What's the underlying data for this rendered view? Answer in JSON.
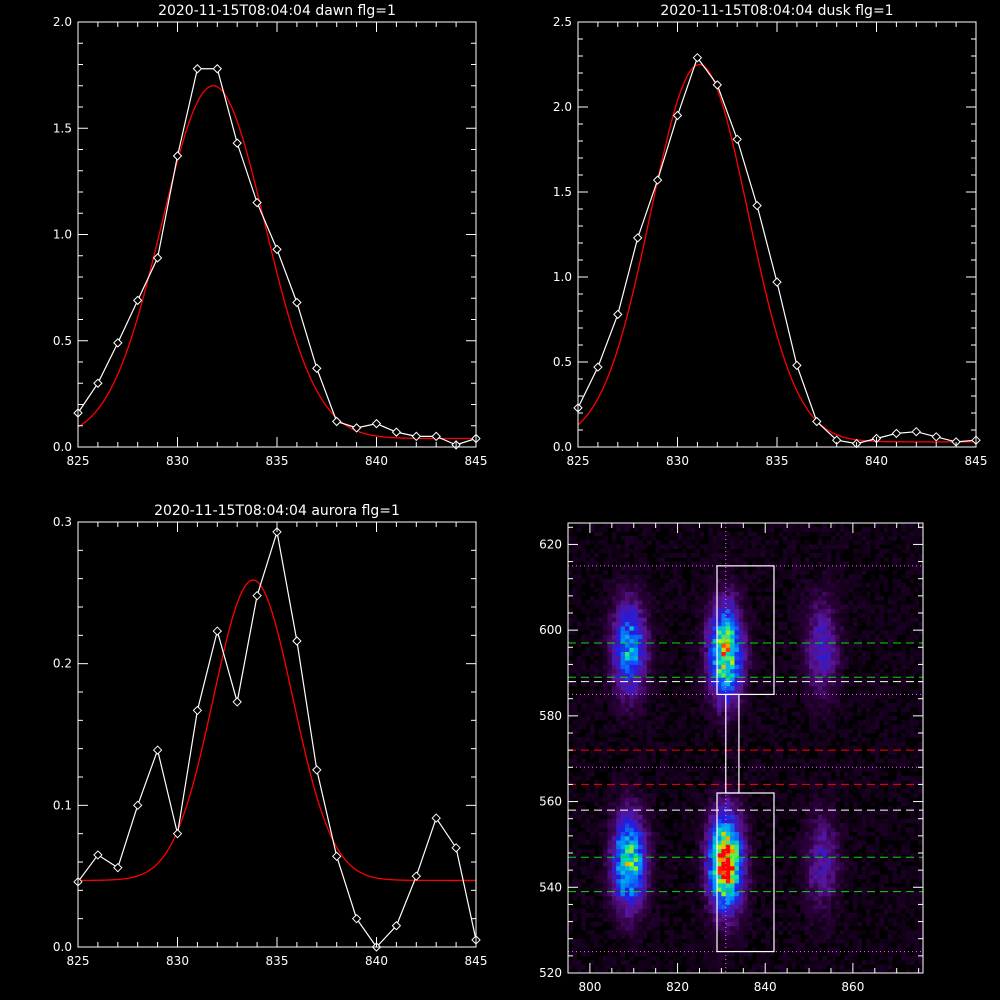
{
  "colors": {
    "background": "#000000",
    "data": "#ffffff",
    "fit": "#ff0000",
    "green": "#00e000",
    "red": "#ff0000",
    "magenta": "#ff66ff"
  },
  "chart_data": [
    {
      "type": "line",
      "title": "2020-11-15T08:04:04 dawn flg=1",
      "xlim": [
        825,
        845
      ],
      "ylim": [
        0,
        2.0
      ],
      "xticks": [
        "825",
        "830",
        "835",
        "840",
        "845"
      ],
      "yticks": [
        "0.0",
        "0.5",
        "1.0",
        "1.5",
        "2.0"
      ],
      "x": [
        825,
        826,
        827,
        828,
        829,
        830,
        831,
        832,
        833,
        834,
        835,
        836,
        837,
        838,
        839,
        840,
        841,
        842,
        843,
        844,
        845
      ],
      "series": [
        {
          "values": [
            0.16,
            0.3,
            0.49,
            0.69,
            0.89,
            1.37,
            1.78,
            1.78,
            1.43,
            1.15,
            0.93,
            0.68,
            0.37,
            0.12,
            0.09,
            0.11,
            0.07,
            0.05,
            0.05,
            0.01,
            0.04
          ]
        },
        {
          "fit": {
            "amp": 1.66,
            "center": 831.8,
            "sigma": 2.6,
            "base": 0.04
          }
        }
      ]
    },
    {
      "type": "line",
      "title": "2020-11-15T08:04:04 dusk flg=1",
      "xlim": [
        825,
        845
      ],
      "ylim": [
        0,
        2.5
      ],
      "xticks": [
        "825",
        "830",
        "835",
        "840",
        "845"
      ],
      "yticks": [
        "0.0",
        "0.5",
        "1.0",
        "1.5",
        "2.0",
        "2.5"
      ],
      "x": [
        825,
        826,
        827,
        828,
        829,
        830,
        831,
        832,
        833,
        834,
        835,
        836,
        837,
        838,
        839,
        840,
        841,
        842,
        843,
        844,
        845
      ],
      "series": [
        {
          "values": [
            0.23,
            0.47,
            0.78,
            1.23,
            1.57,
            1.95,
            2.29,
            2.13,
            1.81,
            1.42,
            0.97,
            0.48,
            0.15,
            0.04,
            0.02,
            0.05,
            0.08,
            0.09,
            0.06,
            0.03,
            0.04
          ]
        },
        {
          "fit": {
            "amp": 2.22,
            "center": 831.1,
            "sigma": 2.45,
            "base": 0.03
          }
        }
      ]
    },
    {
      "type": "line",
      "title": "2020-11-15T08:04:04 aurora flg=1",
      "xlim": [
        825,
        845
      ],
      "ylim": [
        0,
        0.3
      ],
      "xticks": [
        "825",
        "830",
        "835",
        "840",
        "845"
      ],
      "yticks": [
        "0.0",
        "0.1",
        "0.2",
        "0.3"
      ],
      "x": [
        825,
        826,
        827,
        828,
        829,
        830,
        831,
        832,
        833,
        834,
        835,
        836,
        837,
        838,
        839,
        840,
        841,
        842,
        843,
        844,
        845
      ],
      "series": [
        {
          "values": [
            0.046,
            0.065,
            0.056,
            0.1,
            0.139,
            0.08,
            0.167,
            0.223,
            0.173,
            0.248,
            0.293,
            0.216,
            0.125,
            0.064,
            0.02,
            0.0,
            0.015,
            0.05,
            0.091,
            0.07,
            0.005
          ]
        },
        {
          "fit": {
            "amp": 0.212,
            "center": 833.8,
            "sigma": 2.0,
            "base": 0.047
          }
        }
      ]
    },
    {
      "type": "heatmap",
      "xlim": [
        795,
        876
      ],
      "ylim": [
        520,
        625
      ],
      "xticks": [
        "800",
        "820",
        "840",
        "860"
      ],
      "yticks": [
        "520",
        "540",
        "560",
        "580",
        "600",
        "620"
      ],
      "blobs": [
        {
          "x": 809,
          "y": 596,
          "peak": 0.55
        },
        {
          "x": 809,
          "y": 546,
          "peak": 0.7
        },
        {
          "x": 831,
          "y": 595,
          "peak": 0.8
        },
        {
          "x": 831,
          "y": 546,
          "peak": 1.0
        },
        {
          "x": 853,
          "y": 596,
          "peak": 0.3
        },
        {
          "x": 853,
          "y": 546,
          "peak": 0.25
        }
      ],
      "hlines": [
        {
          "y": 615,
          "color": "magenta",
          "style": "dotted"
        },
        {
          "y": 597,
          "color": "green",
          "style": "dashed"
        },
        {
          "y": 589,
          "color": "green",
          "style": "dashed"
        },
        {
          "y": 588,
          "color": "white",
          "style": "dashed"
        },
        {
          "y": 585,
          "color": "magenta",
          "style": "dotted"
        },
        {
          "y": 572,
          "color": "red",
          "style": "dashed"
        },
        {
          "y": 568,
          "color": "magenta",
          "style": "dotted"
        },
        {
          "y": 564,
          "color": "red",
          "style": "dashed"
        },
        {
          "y": 558,
          "color": "white",
          "style": "dashed"
        },
        {
          "y": 547,
          "color": "green",
          "style": "dashed"
        },
        {
          "y": 539,
          "color": "green",
          "style": "dashed"
        },
        {
          "y": 525,
          "color": "magenta",
          "style": "dotted"
        }
      ],
      "vline": {
        "x": 831,
        "color": "magenta",
        "style": "dotted"
      },
      "boxes": [
        {
          "x0": 829,
          "x1": 842,
          "y0": 585,
          "y1": 615
        },
        {
          "x0": 831,
          "x1": 834,
          "y0": 562,
          "y1": 585
        },
        {
          "x0": 829,
          "x1": 842,
          "y0": 525,
          "y1": 562
        }
      ]
    }
  ]
}
